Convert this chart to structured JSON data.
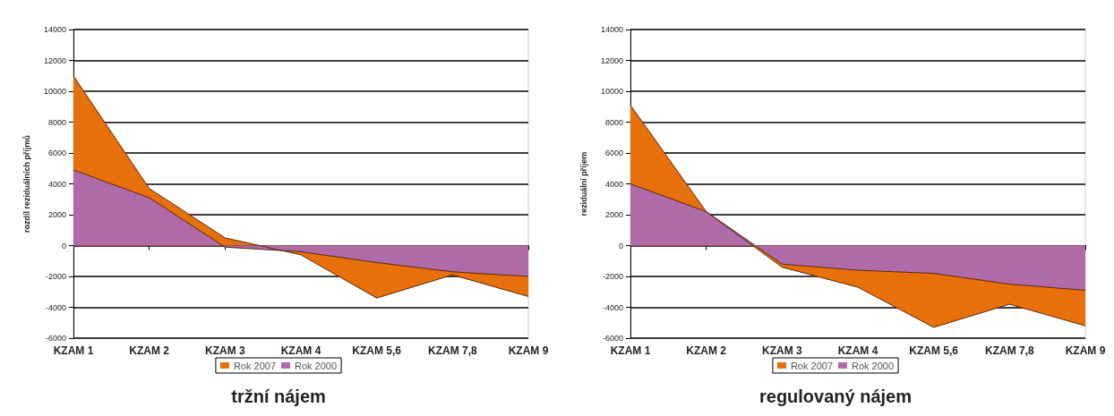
{
  "chart_data": [
    {
      "type": "area",
      "title": "tržní nájem",
      "ylabel": "rozdíl reziduálních příjmů",
      "categories": [
        "KZAM 1",
        "KZAM 2",
        "KZAM 3",
        "KZAM 4",
        "KZAM 5,6",
        "KZAM 7,8",
        "KZAM 9"
      ],
      "series": [
        {
          "name": "Rok 2007",
          "color": "#e8700a",
          "values": [
            11000,
            3700,
            500,
            -600,
            -3400,
            -1900,
            -3300
          ]
        },
        {
          "name": "Rok 2000",
          "color": "#b06aa8",
          "values": [
            4900,
            3100,
            -100,
            -400,
            -1100,
            -1700,
            -2000
          ]
        }
      ],
      "ylim": [
        -6000,
        14000
      ],
      "yticks": [
        -6000,
        -4000,
        -2000,
        0,
        2000,
        4000,
        6000,
        8000,
        10000,
        12000,
        14000
      ],
      "grid": "y",
      "legend": "bottom"
    },
    {
      "type": "area",
      "title": "regulovaný nájem",
      "ylabel": "reziduální příjem",
      "categories": [
        "KZAM 1",
        "KZAM 2",
        "KZAM 3",
        "KZAM 4",
        "KZAM 5,6",
        "KZAM 7,8",
        "KZAM 9"
      ],
      "series": [
        {
          "name": "Rok 2007",
          "color": "#e8700a",
          "values": [
            9100,
            2200,
            -1400,
            -2700,
            -5300,
            -3800,
            -5200
          ]
        },
        {
          "name": "Rok 2000",
          "color": "#b06aa8",
          "values": [
            4000,
            2200,
            -1200,
            -1600,
            -1800,
            -2500,
            -2900
          ]
        }
      ],
      "ylim": [
        -6000,
        14000
      ],
      "yticks": [
        -6000,
        -4000,
        -2000,
        0,
        2000,
        4000,
        6000,
        8000,
        10000,
        12000,
        14000
      ],
      "grid": "y",
      "legend": "bottom"
    }
  ]
}
